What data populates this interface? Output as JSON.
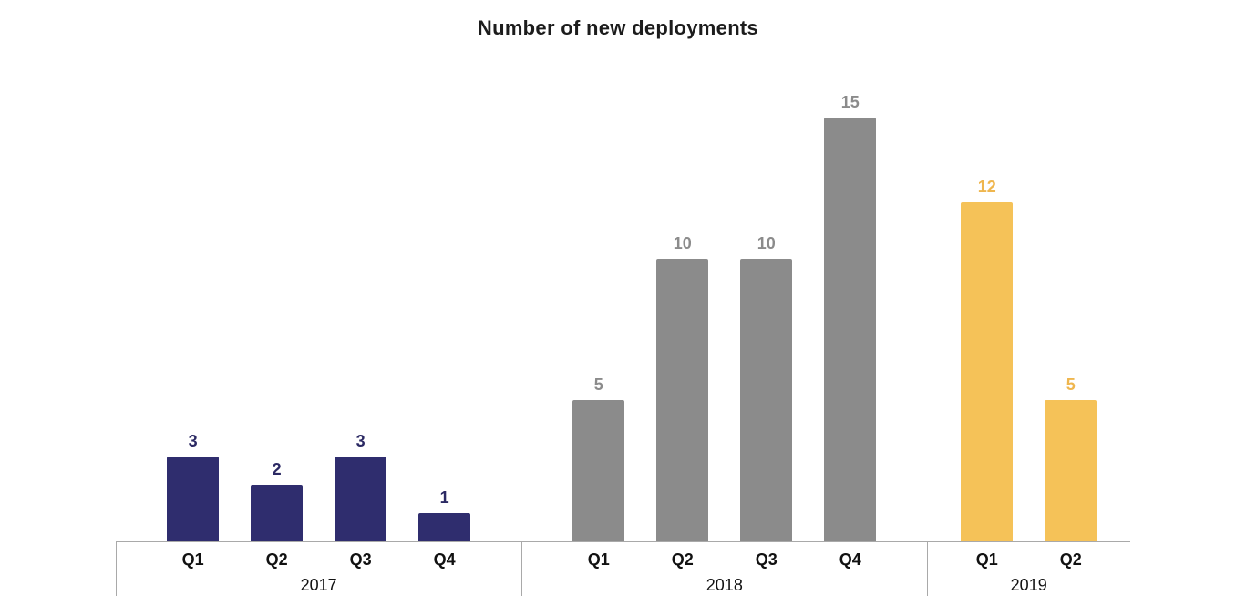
{
  "chart_data": {
    "type": "bar",
    "title": "Number of new deployments",
    "xlabel": "",
    "ylabel": "",
    "ylim": [
      0,
      15
    ],
    "grid": false,
    "legend": false,
    "axis_color": "#a9a9a9",
    "title_color": "#1c1c1c",
    "groups": [
      {
        "year": "2017",
        "color": "#2f2d6e",
        "label_color": "#2b2963",
        "categories": [
          "Q1",
          "Q2",
          "Q3",
          "Q4"
        ],
        "values": [
          3,
          2,
          3,
          1
        ]
      },
      {
        "year": "2018",
        "color": "#8b8b8b",
        "label_color": "#8b8b8b",
        "categories": [
          "Q1",
          "Q2",
          "Q3",
          "Q4"
        ],
        "values": [
          5,
          10,
          10,
          15
        ]
      },
      {
        "year": "2019",
        "color": "#f5c258",
        "label_color": "#efb64e",
        "categories": [
          "Q1",
          "Q2"
        ],
        "values": [
          12,
          5
        ]
      }
    ]
  }
}
